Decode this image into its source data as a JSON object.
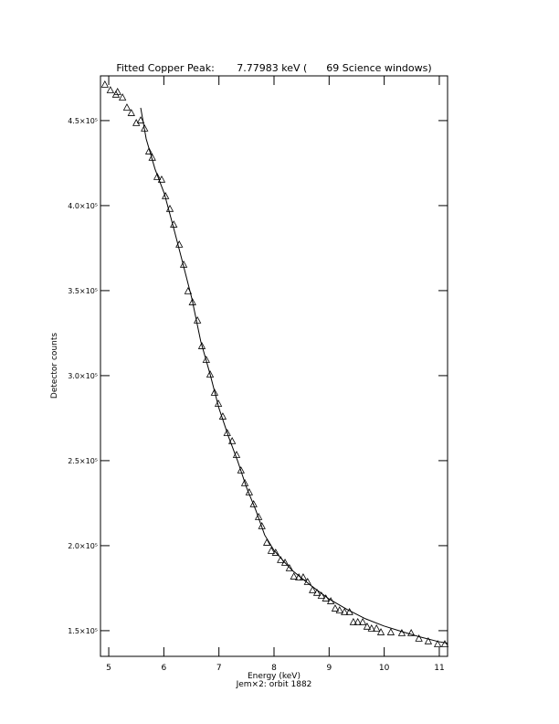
{
  "chart_data": {
    "type": "scatter",
    "title": "Fitted Copper Peak:       7.77983 keV (      69 Science windows)",
    "x_label": "Energy (keV)",
    "y_label": "Detector counts",
    "subtitle": "Jem×2: orbit 1882",
    "xlim": [
      4.85,
      11.15
    ],
    "ylim": [
      134900,
      476300
    ],
    "xticks": [
      5,
      6,
      7,
      8,
      9,
      10,
      11
    ],
    "yticks": [
      {
        "value": 150000,
        "label": "1.5×10⁵"
      },
      {
        "value": 200000,
        "label": "2.0×10⁵"
      },
      {
        "value": 250000,
        "label": "2.5×10⁵"
      },
      {
        "value": 300000,
        "label": "3.0×10⁵"
      },
      {
        "value": 350000,
        "label": "3.5×10⁵"
      },
      {
        "value": 400000,
        "label": "4.0×10⁵"
      },
      {
        "value": 450000,
        "label": "4.5×10⁵"
      }
    ],
    "series": [
      {
        "kind": "points",
        "color": "#000000",
        "x": [
          4.93,
          5.03,
          5.13,
          5.16,
          5.25,
          5.33,
          5.41,
          5.5,
          5.58,
          5.65,
          5.73,
          5.79,
          5.88,
          5.96,
          6.03,
          6.11,
          6.18,
          6.28,
          6.36,
          6.44,
          6.52,
          6.61,
          6.69,
          6.77,
          6.84,
          6.92,
          6.99,
          7.07,
          7.15,
          7.24,
          7.32,
          7.4,
          7.47,
          7.55,
          7.63,
          7.72,
          7.78,
          7.87,
          7.95,
          8.03,
          8.12,
          8.2,
          8.28,
          8.36,
          8.45,
          8.53,
          8.61,
          8.7,
          8.78,
          8.86,
          8.94,
          9.03,
          9.11,
          9.19,
          9.28,
          9.37,
          9.44,
          9.52,
          9.61,
          9.69,
          9.77,
          9.86,
          9.94,
          10.12,
          10.32,
          10.49,
          10.63,
          10.8,
          10.97,
          11.1
        ],
        "values": [
          471000,
          467700,
          465100,
          466700,
          463400,
          457500,
          454300,
          448400,
          450000,
          445200,
          431700,
          428000,
          416700,
          415100,
          405400,
          397900,
          388700,
          376900,
          365100,
          349500,
          343000,
          332300,
          317200,
          309100,
          300500,
          289800,
          283300,
          275800,
          266100,
          261300,
          253200,
          244100,
          236600,
          231200,
          224200,
          216700,
          211300,
          201600,
          196800,
          195700,
          191400,
          189800,
          186600,
          181700,
          181200,
          181200,
          178500,
          173700,
          172100,
          170400,
          168800,
          167200,
          162900,
          161800,
          160800,
          160800,
          154900,
          154900,
          154900,
          152200,
          151100,
          151100,
          148900,
          148900,
          148400,
          148400,
          145200,
          143600,
          141900,
          141900
        ]
      },
      {
        "kind": "line",
        "color": "#000000",
        "x": [
          5.58,
          5.68,
          5.84,
          6.01,
          6.18,
          6.34,
          6.51,
          6.67,
          6.84,
          7.0,
          7.17,
          7.34,
          7.5,
          7.67,
          7.83,
          8.0,
          8.16,
          8.33,
          8.66,
          8.99,
          9.33,
          9.66,
          9.99,
          10.32,
          10.65,
          10.98,
          11.15
        ],
        "values": [
          457500,
          439200,
          421500,
          407000,
          386600,
          366700,
          345200,
          320200,
          300800,
          280900,
          264500,
          249800,
          234300,
          220800,
          206300,
          197200,
          191400,
          185400,
          176800,
          168800,
          162400,
          157000,
          152800,
          149500,
          146300,
          143600,
          142600
        ]
      }
    ]
  }
}
